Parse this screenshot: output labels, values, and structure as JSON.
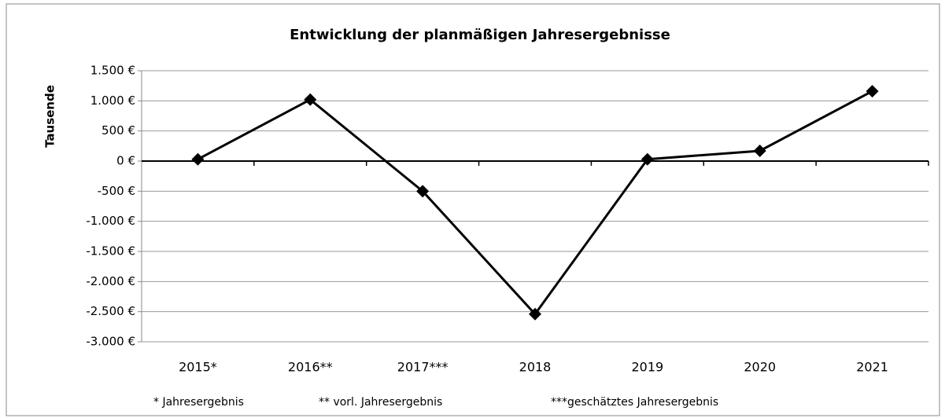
{
  "chart_data": {
    "type": "line",
    "title": "Entwicklung der planmäßigen Jahresergebnisse",
    "y_label": "Tausende",
    "categories": [
      "2015*",
      "2016**",
      "2017***",
      "2018",
      "2019",
      "2020",
      "2021"
    ],
    "series": [
      {
        "name": "Jahresergebnis",
        "color": "#000000",
        "values": [
          30,
          1020,
          -500,
          -2540,
          30,
          170,
          1160
        ]
      }
    ],
    "ylim": [
      -3000,
      1500
    ],
    "yticks": [
      {
        "value": -3000,
        "label": "-3.000 €"
      },
      {
        "value": -2500,
        "label": "-2.500 €"
      },
      {
        "value": -2000,
        "label": "-2.000 €"
      },
      {
        "value": -1500,
        "label": "-1.500 €"
      },
      {
        "value": -1000,
        "label": "-1.000 €"
      },
      {
        "value": -500,
        "label": "-500 €"
      },
      {
        "value": 0,
        "label": "0 €"
      },
      {
        "value": 500,
        "label": "500 €"
      },
      {
        "value": 1000,
        "label": "1.000 €"
      },
      {
        "value": 1500,
        "label": "1.500 €"
      }
    ],
    "grid": true,
    "legend": false,
    "annotations": [
      "* Jahresergebnis",
      "** vorl. Jahresergebnis",
      "***geschätztes Jahresergebnis"
    ]
  }
}
